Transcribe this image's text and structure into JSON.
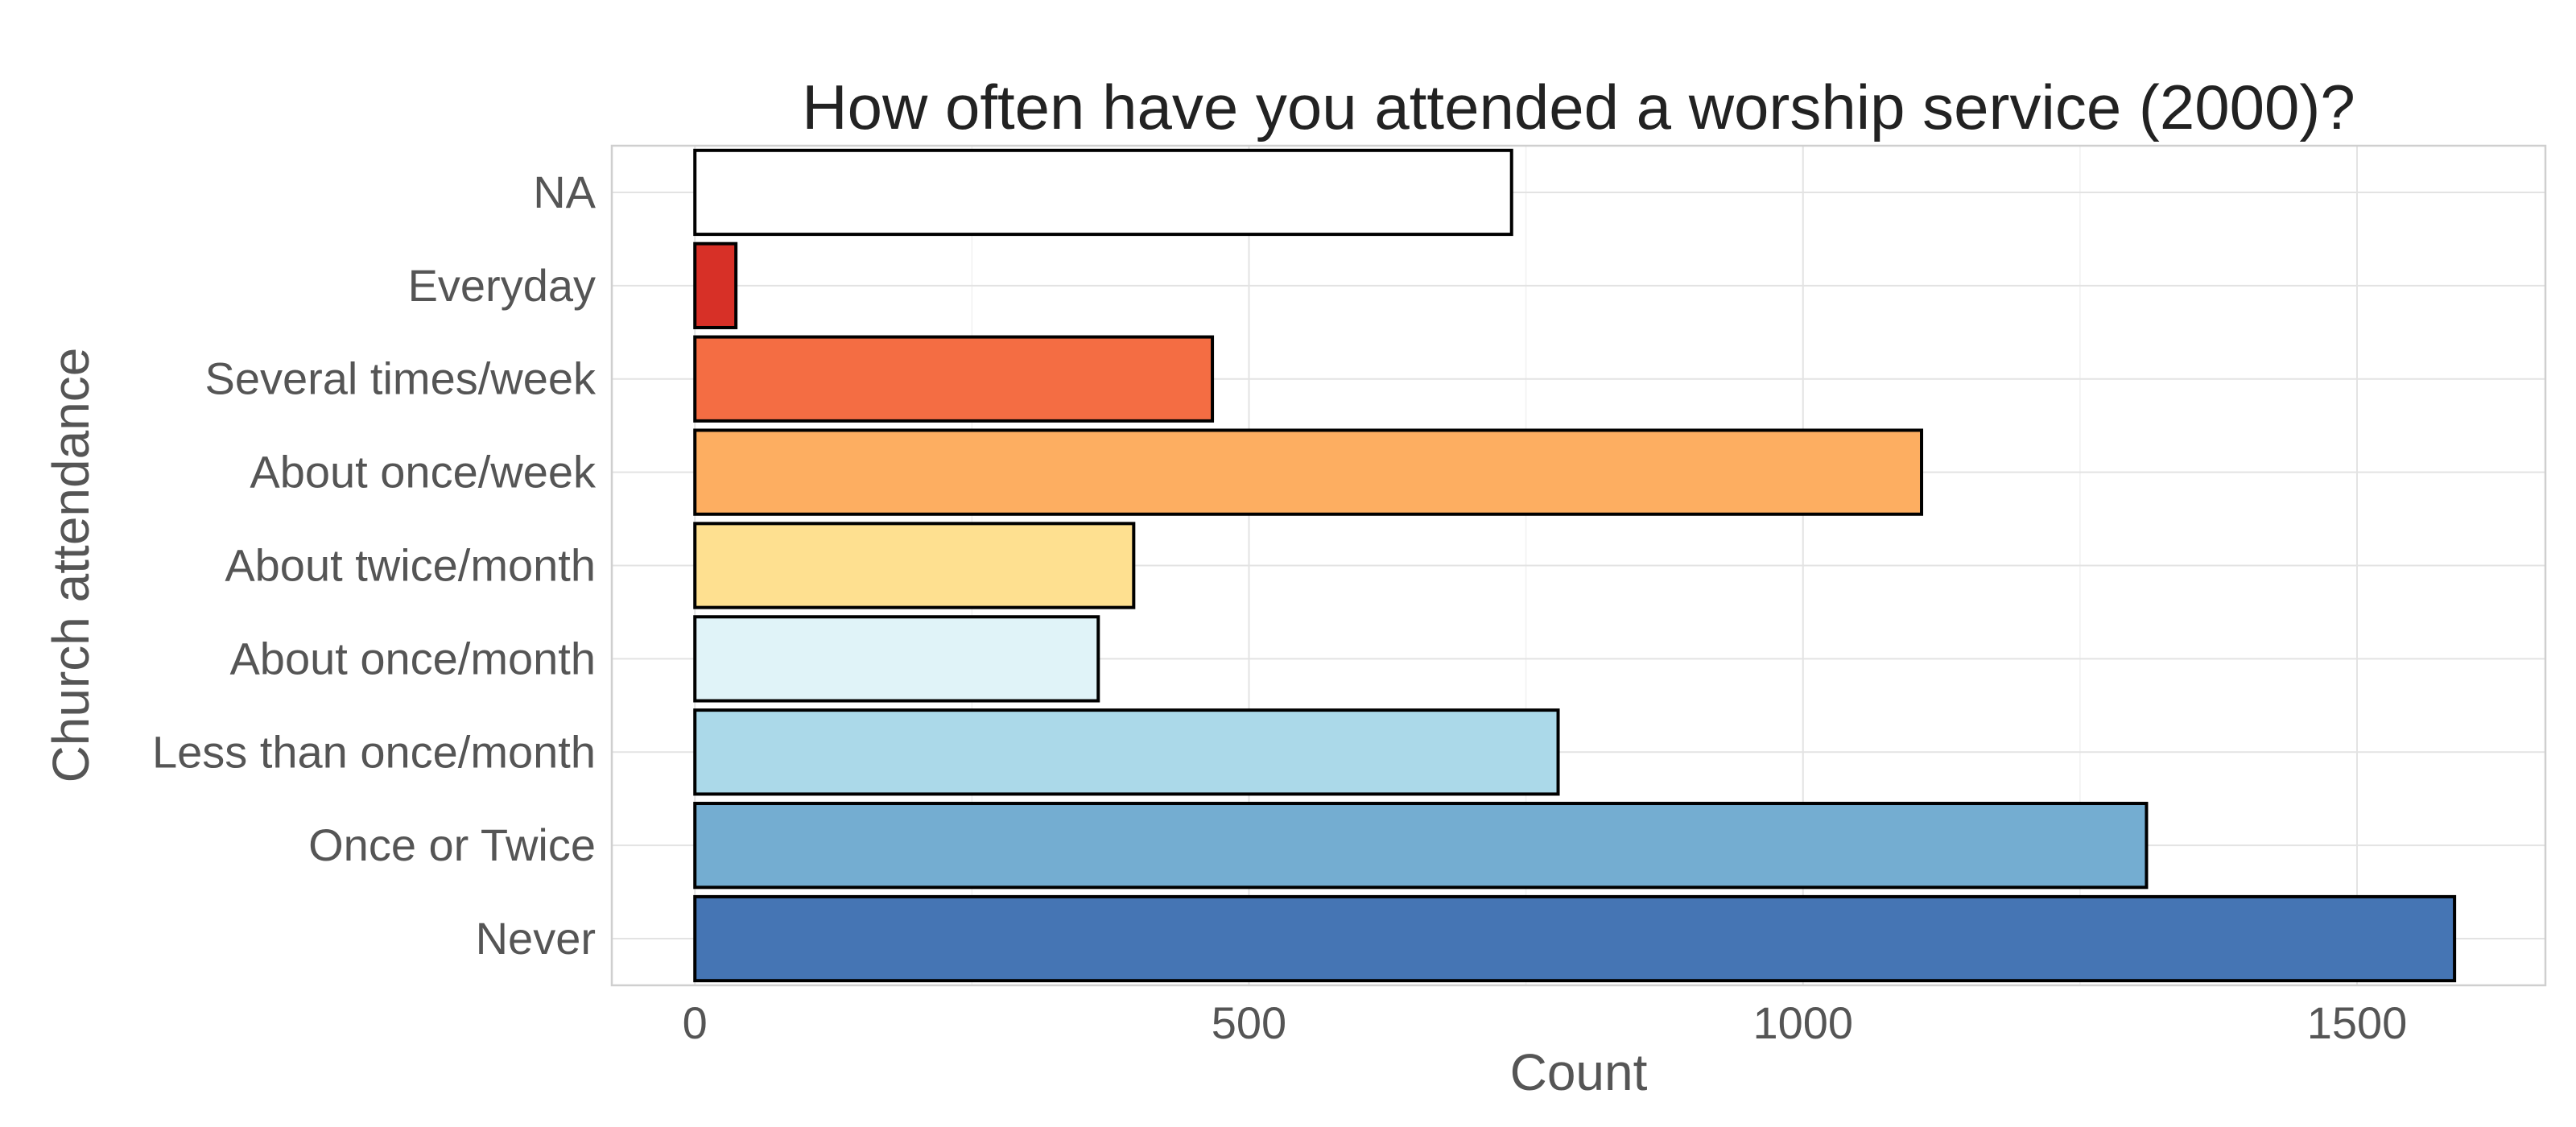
{
  "chart_data": {
    "type": "bar",
    "orientation": "horizontal",
    "title": "How often have you attended a worship service (2000)?",
    "xlabel": "Count",
    "ylabel": "Church attendance",
    "categories": [
      "NA",
      "Everyday",
      "Several times/week",
      "About once/week",
      "About twice/month",
      "About once/month",
      "Less than once/month",
      "Once or Twice",
      "Never"
    ],
    "values": [
      737,
      37,
      467,
      1107,
      396,
      364,
      779,
      1310,
      1588
    ],
    "colors": [
      "#ffffff",
      "#d73027",
      "#f46d43",
      "#fdae61",
      "#fee090",
      "#e0f3f8",
      "#abd9e9",
      "#74add1",
      "#4575b4"
    ],
    "xticks": [
      0,
      500,
      1000,
      1500
    ],
    "xlim": [
      -75,
      1670
    ],
    "grid": true,
    "legend": "none"
  }
}
